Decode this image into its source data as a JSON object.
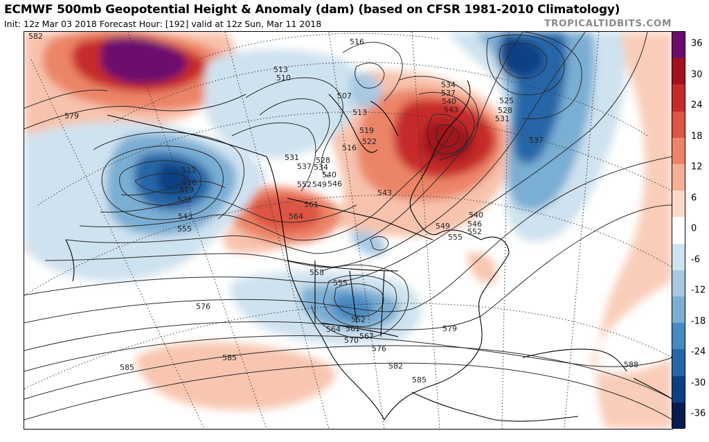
{
  "header": {
    "title": "ECMWF 500mb Geopotential Height & Anomaly (dam) (based on CFSR 1981-2010 Climatology)",
    "subtitle": "Init: 12z Mar 03 2018   Forecast Hour: [192]   valid at 12z Sun, Mar 11 2018",
    "brand": "TROPICALTIDBITS.COM"
  },
  "colorbar": {
    "labels": [
      "36",
      "30",
      "24",
      "18",
      "12",
      "6",
      "0",
      "-6",
      "-12",
      "-18",
      "-24",
      "-30",
      "-36"
    ],
    "colors": [
      "#6d0a6d",
      "#a3121c",
      "#c62b2b",
      "#dc5544",
      "#ec8468",
      "#f5b095",
      "#fbd9c8",
      "#ffffff",
      "#cfe2ef",
      "#a7c9e2",
      "#7aaed3",
      "#4a88c0",
      "#2566a8",
      "#0d3f85",
      "#081c52"
    ]
  },
  "map": {
    "height_labels": [
      "582",
      "579",
      "516",
      "513",
      "510",
      "534",
      "537",
      "540",
      "543",
      "525",
      "528",
      "531",
      "537",
      "513",
      "516",
      "519",
      "525",
      "543",
      "555",
      "531",
      "537",
      "528",
      "534",
      "540",
      "546",
      "552",
      "549",
      "561",
      "564",
      "558",
      "555",
      "552",
      "561",
      "564",
      "567",
      "570",
      "576",
      "579",
      "576",
      "585",
      "585",
      "582",
      "585",
      "588",
      "543",
      "540",
      "546",
      "549",
      "552",
      "555",
      "519",
      "522",
      "507",
      "513",
      "516"
    ]
  }
}
